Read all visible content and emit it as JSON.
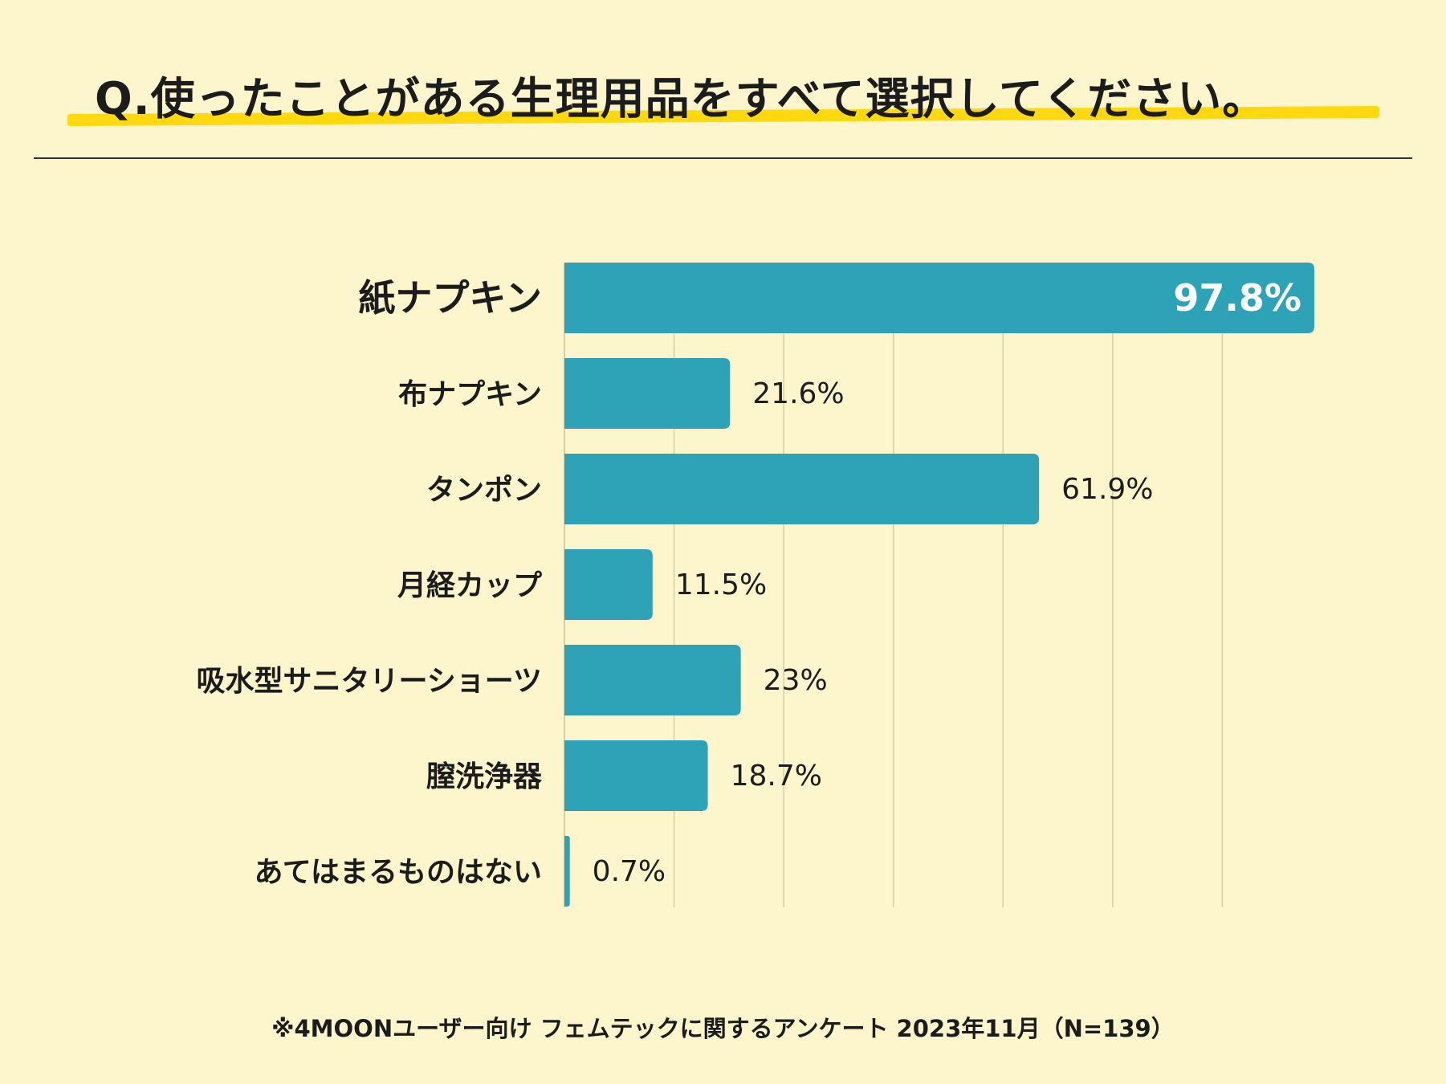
{
  "title": "Q.使ったことがある生理用品をすべて選択してください。",
  "footnote": "※4MOONユーザー向け フェムテックに関するアンケート 2023年11月（N=139）",
  "colors": {
    "bar": "#2ea3b7",
    "background": "#fdf6cd",
    "highlight": "#ffd90f",
    "grid": "#d3cfa8",
    "text": "#1c1c1c",
    "label_inside": "#ffffff"
  },
  "chart_data": {
    "type": "bar",
    "orientation": "horizontal",
    "categories": [
      "紙ナプキン",
      "布ナプキン",
      "タンポン",
      "月経カップ",
      "吸水型サニタリーショーツ",
      "膣洗浄器",
      "あてはまるものはない"
    ],
    "values": [
      97.8,
      21.6,
      61.9,
      11.5,
      23,
      18.7,
      0.7
    ],
    "value_labels": [
      "97.8%",
      "21.6%",
      "61.9%",
      "11.5%",
      "23%",
      "18.7%",
      "0.7%"
    ],
    "unit": "%",
    "xlim": [
      0,
      100
    ],
    "grid_step": 14.3,
    "grid": true,
    "legend": "none"
  }
}
